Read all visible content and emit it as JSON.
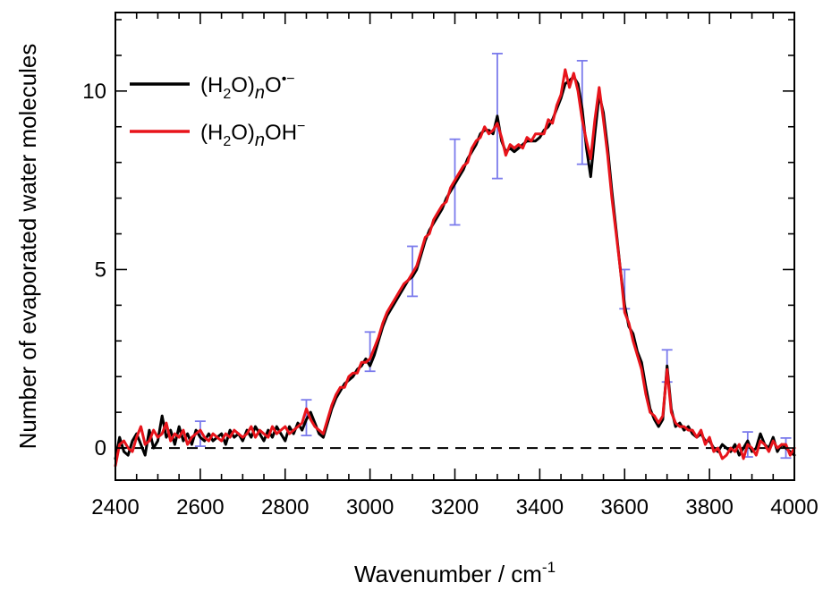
{
  "chart_data": {
    "type": "line",
    "title": "",
    "xlabel": "Wavenumber / cm",
    "xlabel_sup": "-1",
    "ylabel": "Number of evaporated water molecules",
    "xlim": [
      2400,
      4000
    ],
    "ylim": [
      -0.9,
      12.2
    ],
    "x_ticks": [
      2400,
      2600,
      2800,
      3000,
      3200,
      3400,
      3600,
      3800,
      4000
    ],
    "x_tick_labels": [
      "2400",
      "2600",
      "2800",
      "3000",
      "3200",
      "3400",
      "3600",
      "3800",
      "4000"
    ],
    "y_ticks": [
      0,
      5,
      10
    ],
    "y_tick_labels": [
      "0",
      "5",
      "10"
    ],
    "grid": false,
    "legend_position": "top-left",
    "zero_line": {
      "y": 0,
      "style": "dashed",
      "color": "#000000"
    },
    "legend": [
      {
        "parts": [
          "(H",
          "2",
          "O)",
          "n",
          "O",
          "•−"
        ],
        "color": "#000000"
      },
      {
        "parts": [
          "(H",
          "2",
          "O)",
          "n",
          "OH",
          "−"
        ],
        "color": "#e8141b"
      }
    ],
    "series": [
      {
        "color": "#000000",
        "x": [
          2400,
          2410,
          2420,
          2430,
          2440,
          2450,
          2460,
          2470,
          2480,
          2490,
          2500,
          2510,
          2520,
          2530,
          2540,
          2550,
          2560,
          2570,
          2580,
          2590,
          2600,
          2610,
          2620,
          2630,
          2640,
          2650,
          2660,
          2670,
          2680,
          2690,
          2700,
          2710,
          2720,
          2730,
          2740,
          2750,
          2760,
          2770,
          2780,
          2790,
          2800,
          2810,
          2820,
          2830,
          2840,
          2850,
          2860,
          2870,
          2880,
          2890,
          2900,
          2910,
          2920,
          2930,
          2940,
          2950,
          2960,
          2970,
          2980,
          2990,
          3000,
          3010,
          3020,
          3030,
          3040,
          3050,
          3060,
          3070,
          3080,
          3090,
          3100,
          3110,
          3120,
          3130,
          3140,
          3150,
          3160,
          3170,
          3180,
          3190,
          3200,
          3210,
          3220,
          3230,
          3240,
          3250,
          3260,
          3270,
          3280,
          3290,
          3300,
          3310,
          3320,
          3330,
          3340,
          3350,
          3360,
          3370,
          3380,
          3390,
          3400,
          3410,
          3420,
          3430,
          3440,
          3450,
          3460,
          3470,
          3480,
          3490,
          3500,
          3510,
          3520,
          3530,
          3540,
          3550,
          3560,
          3570,
          3580,
          3590,
          3600,
          3610,
          3620,
          3630,
          3640,
          3650,
          3660,
          3670,
          3680,
          3690,
          3700,
          3710,
          3720,
          3730,
          3740,
          3750,
          3760,
          3770,
          3780,
          3790,
          3800,
          3810,
          3820,
          3830,
          3840,
          3850,
          3860,
          3870,
          3880,
          3890,
          3900,
          3910,
          3920,
          3930,
          3940,
          3950,
          3960,
          3970,
          3980,
          3990,
          4000
        ],
        "y": [
          -0.3,
          0.3,
          -0.1,
          -0.2,
          0.2,
          0.4,
          0.1,
          -0.2,
          0.5,
          0.0,
          0.2,
          0.9,
          0.3,
          0.5,
          0.1,
          0.6,
          0.2,
          0.4,
          0.1,
          0.5,
          0.3,
          0.2,
          0.4,
          0.2,
          0.3,
          0.4,
          0.1,
          0.5,
          0.3,
          0.4,
          0.2,
          0.5,
          0.3,
          0.6,
          0.4,
          0.2,
          0.5,
          0.3,
          0.6,
          0.4,
          0.2,
          0.6,
          0.4,
          0.7,
          0.5,
          0.8,
          1.0,
          0.7,
          0.4,
          0.3,
          0.7,
          1.1,
          1.4,
          1.6,
          1.8,
          1.9,
          2.0,
          2.2,
          2.3,
          2.5,
          2.3,
          2.6,
          3.0,
          3.4,
          3.7,
          3.9,
          4.1,
          4.3,
          4.5,
          4.7,
          4.8,
          5.0,
          5.4,
          5.8,
          6.1,
          6.3,
          6.5,
          6.7,
          7.0,
          7.2,
          7.4,
          7.6,
          7.8,
          8.1,
          8.3,
          8.5,
          8.8,
          8.9,
          8.9,
          8.8,
          9.3,
          8.6,
          8.3,
          8.4,
          8.3,
          8.4,
          8.5,
          8.6,
          8.6,
          8.6,
          8.7,
          8.9,
          9.0,
          9.2,
          9.5,
          9.8,
          10.2,
          10.3,
          10.4,
          10.2,
          9.5,
          8.4,
          7.6,
          8.8,
          9.9,
          9.4,
          8.4,
          7.2,
          6.1,
          5.0,
          4.0,
          3.4,
          3.2,
          2.7,
          2.4,
          1.7,
          1.1,
          0.8,
          0.6,
          0.8,
          2.3,
          1.1,
          0.6,
          0.7,
          0.5,
          0.6,
          0.4,
          0.3,
          0.4,
          0.2,
          0.2,
          0.0,
          -0.1,
          0.1,
          0.0,
          -0.1,
          0.1,
          -0.2,
          0.0,
          0.2,
          -0.1,
          0.0,
          0.4,
          0.1,
          0.0,
          0.3,
          -0.1,
          0.1,
          0.0,
          -0.1,
          -0.2
        ]
      },
      {
        "color": "#e8141b",
        "x": [
          2400,
          2410,
          2420,
          2430,
          2440,
          2450,
          2460,
          2470,
          2480,
          2490,
          2500,
          2510,
          2520,
          2530,
          2540,
          2550,
          2560,
          2570,
          2580,
          2590,
          2600,
          2610,
          2620,
          2630,
          2640,
          2650,
          2660,
          2670,
          2680,
          2690,
          2700,
          2710,
          2720,
          2730,
          2740,
          2750,
          2760,
          2770,
          2780,
          2790,
          2800,
          2810,
          2820,
          2830,
          2840,
          2850,
          2860,
          2870,
          2880,
          2890,
          2900,
          2910,
          2920,
          2930,
          2940,
          2950,
          2960,
          2970,
          2980,
          2990,
          3000,
          3010,
          3020,
          3030,
          3040,
          3050,
          3060,
          3070,
          3080,
          3090,
          3100,
          3110,
          3120,
          3130,
          3140,
          3150,
          3160,
          3170,
          3180,
          3190,
          3200,
          3210,
          3220,
          3230,
          3240,
          3250,
          3260,
          3270,
          3280,
          3290,
          3300,
          3310,
          3320,
          3330,
          3340,
          3350,
          3360,
          3370,
          3380,
          3390,
          3400,
          3410,
          3420,
          3430,
          3440,
          3450,
          3460,
          3470,
          3480,
          3490,
          3500,
          3510,
          3520,
          3530,
          3540,
          3550,
          3560,
          3570,
          3580,
          3590,
          3600,
          3610,
          3620,
          3630,
          3640,
          3650,
          3660,
          3670,
          3680,
          3690,
          3700,
          3710,
          3720,
          3730,
          3740,
          3750,
          3760,
          3770,
          3780,
          3790,
          3800,
          3810,
          3820,
          3830,
          3840,
          3850,
          3860,
          3870,
          3880,
          3890,
          3900,
          3910,
          3920,
          3930,
          3940,
          3950,
          3960,
          3970,
          3980,
          3990,
          4000
        ],
        "y": [
          -0.5,
          0.1,
          0.2,
          0.0,
          -0.1,
          0.3,
          0.6,
          0.1,
          0.2,
          0.5,
          0.3,
          0.4,
          0.7,
          0.2,
          0.4,
          0.3,
          0.5,
          0.1,
          0.3,
          0.4,
          0.5,
          0.3,
          0.2,
          0.4,
          0.3,
          0.2,
          0.4,
          0.3,
          0.5,
          0.4,
          0.3,
          0.4,
          0.6,
          0.3,
          0.5,
          0.4,
          0.3,
          0.6,
          0.4,
          0.5,
          0.6,
          0.4,
          0.5,
          0.6,
          0.7,
          1.1,
          0.8,
          0.6,
          0.5,
          0.4,
          0.8,
          1.2,
          1.5,
          1.7,
          1.7,
          2.0,
          2.1,
          2.1,
          2.4,
          2.4,
          2.5,
          2.8,
          3.1,
          3.5,
          3.8,
          4.0,
          4.2,
          4.4,
          4.6,
          4.7,
          4.9,
          5.1,
          5.5,
          5.9,
          6.0,
          6.4,
          6.6,
          6.8,
          6.9,
          7.3,
          7.5,
          7.7,
          7.9,
          8.0,
          8.4,
          8.6,
          8.7,
          9.0,
          8.8,
          8.9,
          9.1,
          8.7,
          8.2,
          8.5,
          8.4,
          8.5,
          8.4,
          8.7,
          8.6,
          8.8,
          8.8,
          8.8,
          9.2,
          9.1,
          9.6,
          9.9,
          10.6,
          10.1,
          10.5,
          10.0,
          9.2,
          8.6,
          8.1,
          9.2,
          10.1,
          9.2,
          8.2,
          7.0,
          6.0,
          5.0,
          3.8,
          3.5,
          3.0,
          2.6,
          2.2,
          1.5,
          1.0,
          0.9,
          0.7,
          0.9,
          2.2,
          1.0,
          0.7,
          0.6,
          0.6,
          0.5,
          0.5,
          0.3,
          0.5,
          0.1,
          0.3,
          -0.1,
          0.0,
          -0.3,
          -0.2,
          0.0,
          -0.1,
          0.1,
          -0.3,
          0.1,
          0.0,
          -0.2,
          0.2,
          0.1,
          -0.1,
          0.2,
          0.0,
          0.1,
          0.1,
          -0.2,
          0.0
        ]
      }
    ],
    "error_bars": {
      "color": "#7b7bec",
      "points": [
        {
          "x": 2600,
          "y": 0.4,
          "err": 0.35
        },
        {
          "x": 2850,
          "y": 0.85,
          "err": 0.5
        },
        {
          "x": 3000,
          "y": 2.7,
          "err": 0.55
        },
        {
          "x": 3100,
          "y": 4.95,
          "err": 0.7
        },
        {
          "x": 3200,
          "y": 7.45,
          "err": 1.2
        },
        {
          "x": 3300,
          "y": 9.3,
          "err": 1.75
        },
        {
          "x": 3500,
          "y": 9.4,
          "err": 1.45
        },
        {
          "x": 3600,
          "y": 4.45,
          "err": 0.55
        },
        {
          "x": 3700,
          "y": 2.3,
          "err": 0.45
        },
        {
          "x": 3890,
          "y": 0.1,
          "err": 0.35
        },
        {
          "x": 3980,
          "y": 0.0,
          "err": 0.28
        }
      ]
    }
  }
}
